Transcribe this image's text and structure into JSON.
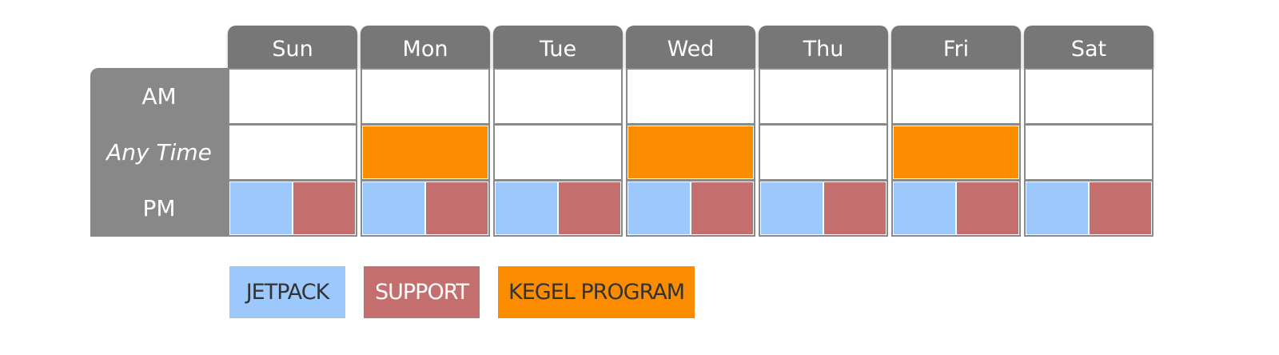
{
  "schedule": {
    "days": [
      "Sun",
      "Mon",
      "Tue",
      "Wed",
      "Thu",
      "Fri",
      "Sat"
    ],
    "rows": [
      {
        "label": "AM",
        "italic": false,
        "cells": [
          [],
          [],
          [],
          [],
          [],
          [],
          []
        ]
      },
      {
        "label": "Any Time",
        "italic": true,
        "cells": [
          [],
          [
            "#fb8c00"
          ],
          [],
          [
            "#fb8c00"
          ],
          [],
          [
            "#fb8c00"
          ],
          []
        ]
      },
      {
        "label": "PM",
        "italic": false,
        "cells": [
          [
            "#9cc8fb",
            "#c56e6e"
          ],
          [
            "#9cc8fb",
            "#c56e6e"
          ],
          [
            "#9cc8fb",
            "#c56e6e"
          ],
          [
            "#9cc8fb",
            "#c56e6e"
          ],
          [
            "#9cc8fb",
            "#c56e6e"
          ],
          [
            "#9cc8fb",
            "#c56e6e"
          ],
          [
            "#9cc8fb",
            "#c56e6e"
          ]
        ]
      }
    ]
  },
  "legend": [
    {
      "label": "JETPACK",
      "color": "#9cc8fb",
      "text_color": "#333333"
    },
    {
      "label": "SUPPORT",
      "color": "#c56e6e",
      "text_color": "#ffffff"
    },
    {
      "label": "KEGEL PROGRAM",
      "color": "#fb8c00",
      "text_color": "#333333"
    }
  ]
}
